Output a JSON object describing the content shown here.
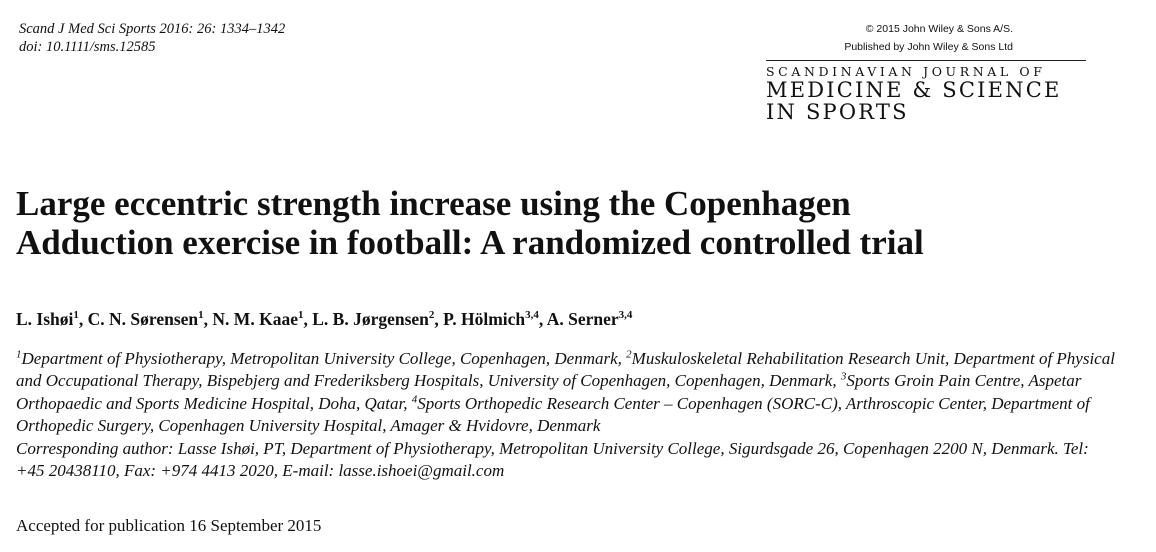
{
  "header": {
    "citation_line1": "Scand J Med Sci Sports 2016: 26: 1334–1342",
    "citation_line2": "doi: 10.1111/sms.12585",
    "copyright": "© 2015 John Wiley & Sons A/S.",
    "published_by": "Published by John Wiley & Sons Ltd",
    "journal_line1": "SCANDINAVIAN JOURNAL OF",
    "journal_line2": "MEDICINE & SCIENCE",
    "journal_line3": "IN SPORTS"
  },
  "title": {
    "line1": "Large eccentric strength increase using the Copenhagen",
    "line2": "Adduction exercise in football: A randomized controlled trial"
  },
  "authors": [
    {
      "name": "L. Ishøi",
      "sup": "1",
      "sep": ", "
    },
    {
      "name": "C. N. Sørensen",
      "sup": "1",
      "sep": ", "
    },
    {
      "name": "N. M. Kaae",
      "sup": "1",
      "sep": ", "
    },
    {
      "name": "L. B. Jørgensen",
      "sup": "2",
      "sep": ", "
    },
    {
      "name": "P. Hölmich",
      "sup": "3,4",
      "sep": ", "
    },
    {
      "name": "A. Serner",
      "sup": "3,4",
      "sep": ""
    }
  ],
  "affiliations": {
    "sup1": "1",
    "text1": "Department of Physiotherapy, Metropolitan University College, Copenhagen, Denmark, ",
    "sup2": "2",
    "text2": "Muskuloskeletal Rehabilitation Research Unit, Department of Physical and Occupational Therapy, Bispebjerg and Frederiksberg Hospitals, University of Copenhagen, Copenhagen, Denmark, ",
    "sup3": "3",
    "text3": "Sports Groin Pain Centre, Aspetar Orthopaedic and Sports Medicine Hospital, Doha, Qatar, ",
    "sup4": "4",
    "text4": "Sports Orthopedic Research Center – Copenhagen (SORC-C), Arthroscopic Center, Department of Orthopedic Surgery, Copenhagen University Hospital, Amager & Hvidovre, Denmark",
    "corresponding": "Corresponding author: Lasse Ishøi, PT, Department of Physiotherapy, Metropolitan University College, Sigurdsgade 26, Copenhagen 2200 N, Denmark. Tel: +45 20438110, Fax: +974 4413 2020, E-mail: lasse.ishoei@gmail.com"
  },
  "accepted": "Accepted for publication 16 September 2015"
}
